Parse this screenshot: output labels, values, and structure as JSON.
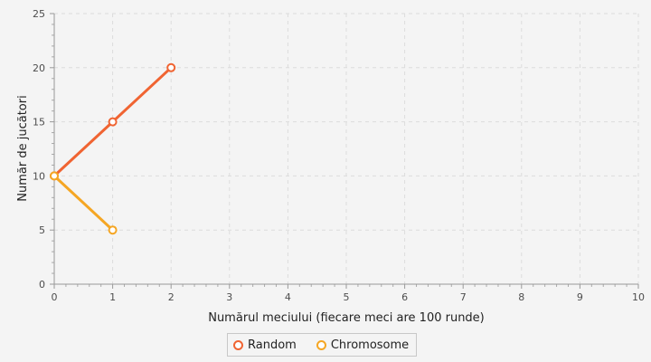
{
  "chart_data": {
    "type": "line",
    "xlabel": "Numărul meciului (fiecare meci are 100 runde)",
    "ylabel": "Număr de jucători",
    "xlim": [
      0,
      10
    ],
    "ylim": [
      0,
      25
    ],
    "x_ticks": [
      "0",
      "1",
      "2",
      "3",
      "4",
      "5",
      "6",
      "7",
      "8",
      "9",
      "10"
    ],
    "y_ticks": [
      "0",
      "5",
      "10",
      "15",
      "20",
      "25"
    ],
    "grid": true,
    "legend_position": "bottom",
    "series": [
      {
        "name": "Random",
        "color": "#f06432",
        "x": [
          0,
          1,
          2
        ],
        "y": [
          10,
          15,
          20
        ]
      },
      {
        "name": "Chromosome",
        "color": "#f5a623",
        "x": [
          0,
          1
        ],
        "y": [
          10,
          5
        ]
      }
    ]
  }
}
